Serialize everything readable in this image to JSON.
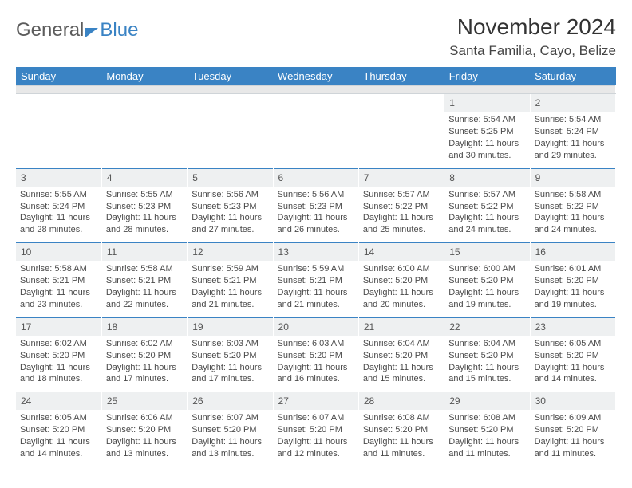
{
  "logo": {
    "general": "General",
    "blue": "Blue"
  },
  "header": {
    "month_title": "November 2024",
    "location": "Santa Familia, Cayo, Belize"
  },
  "styling": {
    "header_bg": "#3a83c4",
    "header_text": "#ffffff",
    "daynum_bg": "#eef0f1",
    "body_bg": "#ffffff",
    "text_color": "#4a4a4a",
    "font_family": "Arial",
    "title_fontsize": 28,
    "location_fontsize": 17,
    "dayheader_fontsize": 13,
    "daynum_fontsize": 12,
    "body_fontsize": 11,
    "columns": 7,
    "cell_border_top": "#3a83c4"
  },
  "day_headers": [
    "Sunday",
    "Monday",
    "Tuesday",
    "Wednesday",
    "Thursday",
    "Friday",
    "Saturday"
  ],
  "labels": {
    "sunrise": "Sunrise: ",
    "sunset": "Sunset: ",
    "daylight": "Daylight: "
  },
  "weeks": [
    [
      null,
      null,
      null,
      null,
      null,
      {
        "day": "1",
        "sunrise": "5:54 AM",
        "sunset": "5:25 PM",
        "daylight": "11 hours and 30 minutes."
      },
      {
        "day": "2",
        "sunrise": "5:54 AM",
        "sunset": "5:24 PM",
        "daylight": "11 hours and 29 minutes."
      }
    ],
    [
      {
        "day": "3",
        "sunrise": "5:55 AM",
        "sunset": "5:24 PM",
        "daylight": "11 hours and 28 minutes."
      },
      {
        "day": "4",
        "sunrise": "5:55 AM",
        "sunset": "5:23 PM",
        "daylight": "11 hours and 28 minutes."
      },
      {
        "day": "5",
        "sunrise": "5:56 AM",
        "sunset": "5:23 PM",
        "daylight": "11 hours and 27 minutes."
      },
      {
        "day": "6",
        "sunrise": "5:56 AM",
        "sunset": "5:23 PM",
        "daylight": "11 hours and 26 minutes."
      },
      {
        "day": "7",
        "sunrise": "5:57 AM",
        "sunset": "5:22 PM",
        "daylight": "11 hours and 25 minutes."
      },
      {
        "day": "8",
        "sunrise": "5:57 AM",
        "sunset": "5:22 PM",
        "daylight": "11 hours and 24 minutes."
      },
      {
        "day": "9",
        "sunrise": "5:58 AM",
        "sunset": "5:22 PM",
        "daylight": "11 hours and 24 minutes."
      }
    ],
    [
      {
        "day": "10",
        "sunrise": "5:58 AM",
        "sunset": "5:21 PM",
        "daylight": "11 hours and 23 minutes."
      },
      {
        "day": "11",
        "sunrise": "5:58 AM",
        "sunset": "5:21 PM",
        "daylight": "11 hours and 22 minutes."
      },
      {
        "day": "12",
        "sunrise": "5:59 AM",
        "sunset": "5:21 PM",
        "daylight": "11 hours and 21 minutes."
      },
      {
        "day": "13",
        "sunrise": "5:59 AM",
        "sunset": "5:21 PM",
        "daylight": "11 hours and 21 minutes."
      },
      {
        "day": "14",
        "sunrise": "6:00 AM",
        "sunset": "5:20 PM",
        "daylight": "11 hours and 20 minutes."
      },
      {
        "day": "15",
        "sunrise": "6:00 AM",
        "sunset": "5:20 PM",
        "daylight": "11 hours and 19 minutes."
      },
      {
        "day": "16",
        "sunrise": "6:01 AM",
        "sunset": "5:20 PM",
        "daylight": "11 hours and 19 minutes."
      }
    ],
    [
      {
        "day": "17",
        "sunrise": "6:02 AM",
        "sunset": "5:20 PM",
        "daylight": "11 hours and 18 minutes."
      },
      {
        "day": "18",
        "sunrise": "6:02 AM",
        "sunset": "5:20 PM",
        "daylight": "11 hours and 17 minutes."
      },
      {
        "day": "19",
        "sunrise": "6:03 AM",
        "sunset": "5:20 PM",
        "daylight": "11 hours and 17 minutes."
      },
      {
        "day": "20",
        "sunrise": "6:03 AM",
        "sunset": "5:20 PM",
        "daylight": "11 hours and 16 minutes."
      },
      {
        "day": "21",
        "sunrise": "6:04 AM",
        "sunset": "5:20 PM",
        "daylight": "11 hours and 15 minutes."
      },
      {
        "day": "22",
        "sunrise": "6:04 AM",
        "sunset": "5:20 PM",
        "daylight": "11 hours and 15 minutes."
      },
      {
        "day": "23",
        "sunrise": "6:05 AM",
        "sunset": "5:20 PM",
        "daylight": "11 hours and 14 minutes."
      }
    ],
    [
      {
        "day": "24",
        "sunrise": "6:05 AM",
        "sunset": "5:20 PM",
        "daylight": "11 hours and 14 minutes."
      },
      {
        "day": "25",
        "sunrise": "6:06 AM",
        "sunset": "5:20 PM",
        "daylight": "11 hours and 13 minutes."
      },
      {
        "day": "26",
        "sunrise": "6:07 AM",
        "sunset": "5:20 PM",
        "daylight": "11 hours and 13 minutes."
      },
      {
        "day": "27",
        "sunrise": "6:07 AM",
        "sunset": "5:20 PM",
        "daylight": "11 hours and 12 minutes."
      },
      {
        "day": "28",
        "sunrise": "6:08 AM",
        "sunset": "5:20 PM",
        "daylight": "11 hours and 11 minutes."
      },
      {
        "day": "29",
        "sunrise": "6:08 AM",
        "sunset": "5:20 PM",
        "daylight": "11 hours and 11 minutes."
      },
      {
        "day": "30",
        "sunrise": "6:09 AM",
        "sunset": "5:20 PM",
        "daylight": "11 hours and 11 minutes."
      }
    ]
  ]
}
